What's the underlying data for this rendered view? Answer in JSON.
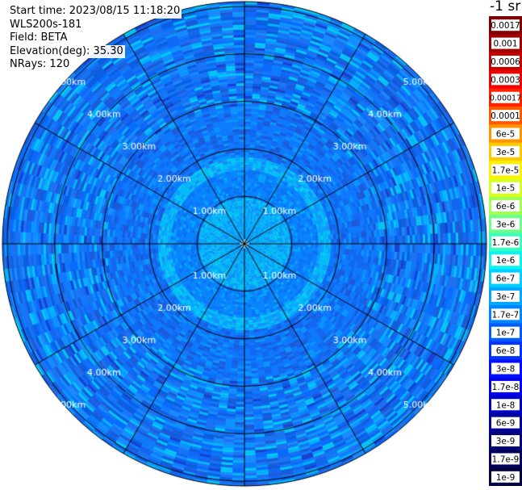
{
  "info": {
    "start_time": "Start time: 2023/08/15 11:18:20",
    "instrument": "WLS200s-181",
    "field": "Field: BETA",
    "elevation": "Elevation(deg): 35.30",
    "nrays": "NRays: 120"
  },
  "colorbar": {
    "title": "-1 sr",
    "labels": [
      "0.0017",
      "0.001",
      "0.0006",
      "0.0003",
      "0.00017",
      "0.0001",
      "6e-5",
      "3e-5",
      "1.7e-5",
      "1e-5",
      "6e-6",
      "3e-6",
      "1.7e-6",
      "1e-6",
      "6e-7",
      "3e-7",
      "1.7e-7",
      "1e-7",
      "6e-8",
      "3e-8",
      "1.7e-8",
      "1e-8",
      "6e-9",
      "3e-9",
      "1.7e-9",
      "1e-9"
    ],
    "colors": [
      "#7f0000",
      "#a20000",
      "#c80000",
      "#f00000",
      "#ff2000",
      "#ff5a00",
      "#ff9400",
      "#ffc800",
      "#fff000",
      "#d6ff21",
      "#a2ff55",
      "#6dff8a",
      "#38ffbe",
      "#0bf5f0",
      "#00d0ff",
      "#00a8ff",
      "#0084ff",
      "#005cff",
      "#0034ff",
      "#0010ff",
      "#0000ea",
      "#0000c2",
      "#00009a",
      "#00007a",
      "#00005a",
      "#00003c"
    ]
  },
  "chart_data": {
    "type": "polar-ppi",
    "title": "",
    "range_rings_km": [
      1,
      2,
      3,
      4,
      5
    ],
    "ring_labels": [
      "1.00km",
      "2.00km",
      "3.00km",
      "4.00km",
      "5.00km"
    ],
    "max_range_km": 5.1,
    "azimuth_spokes_deg": [
      0,
      30,
      60,
      90,
      120,
      150,
      180,
      210,
      240,
      270,
      300,
      330
    ],
    "nrays": 120,
    "field": "BETA",
    "units": "-1 sr",
    "value_pattern": {
      "near_center_value": "1.7e-7",
      "outer_value": "3e-8"
    }
  }
}
